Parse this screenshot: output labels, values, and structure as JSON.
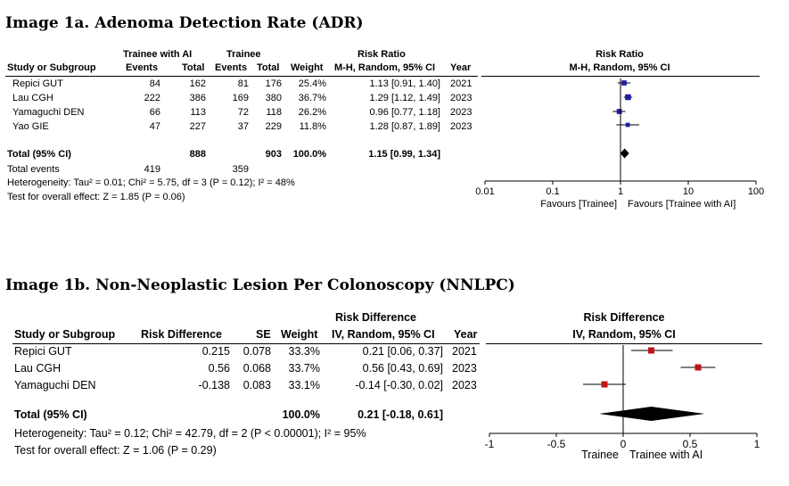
{
  "figure1": {
    "title": "Image 1a. Adenoma Detection Rate (ADR)",
    "headers": {
      "group1": "Trainee with AI",
      "group2": "Trainee",
      "rr": "Risk Ratio",
      "study": "Study or Subgroup",
      "events1": "Events",
      "total1": "Total",
      "events2": "Events",
      "total2": "Total",
      "weight": "Weight",
      "ci": "M-H, Random, 95% CI",
      "year": "Year",
      "plot_title": "Risk Ratio",
      "plot_sub": "M-H, Random, 95% CI"
    },
    "rows": [
      {
        "study": "Repici GUT",
        "events1": "84",
        "total1": "162",
        "events2": "81",
        "total2": "176",
        "weight": "25.4%",
        "ci": "1.13 [0.91, 1.40]",
        "year": "2021"
      },
      {
        "study": "Lau CGH",
        "events1": "222",
        "total1": "386",
        "events2": "169",
        "total2": "380",
        "weight": "36.7%",
        "ci": "1.29 [1.12, 1.49]",
        "year": "2023"
      },
      {
        "study": "Yamaguchi DEN",
        "events1": "66",
        "total1": "113",
        "events2": "72",
        "total2": "118",
        "weight": "26.2%",
        "ci": "0.96 [0.77, 1.18]",
        "year": "2023"
      },
      {
        "study": "Yao GIE",
        "events1": "47",
        "total1": "227",
        "events2": "37",
        "total2": "229",
        "weight": "11.8%",
        "ci": "1.28 [0.87, 1.89]",
        "year": "2023"
      }
    ],
    "total": {
      "label": "Total (95% CI)",
      "total1": "888",
      "total2": "903",
      "weight": "100.0%",
      "ci": "1.15 [0.99, 1.34]"
    },
    "total_events": {
      "label": "Total events",
      "events1": "419",
      "events2": "359"
    },
    "heterogeneity": "Heterogeneity: Tau² = 0.01; Chi² = 5.75, df = 3 (P = 0.12); I² = 48%",
    "overall": "Test for overall effect: Z = 1.85 (P = 0.06)",
    "favours_left": "Favours [Trainee]",
    "favours_right": "Favours [Trainee with AI]"
  },
  "figure2": {
    "title": "Image 1b. Non-Neoplastic Lesion Per Colonoscopy (NNLPC)",
    "headers": {
      "rd": "Risk Difference",
      "study": "Study or Subgroup",
      "diff": "Risk Difference",
      "se": "SE",
      "weight": "Weight",
      "ci": "IV, Random, 95% CI",
      "year": "Year",
      "plot_title": "Risk Difference",
      "plot_sub": "IV, Random, 95% CI"
    },
    "rows": [
      {
        "study": "Repici GUT",
        "diff": "0.215",
        "se": "0.078",
        "weight": "33.3%",
        "ci": "0.21 [0.06, 0.37]",
        "year": "2021"
      },
      {
        "study": "Lau CGH",
        "diff": "0.56",
        "se": "0.068",
        "weight": "33.7%",
        "ci": "0.56 [0.43, 0.69]",
        "year": "2023"
      },
      {
        "study": "Yamaguchi DEN",
        "diff": "-0.138",
        "se": "0.083",
        "weight": "33.1%",
        "ci": "-0.14 [-0.30, 0.02]",
        "year": "2023"
      }
    ],
    "total": {
      "label": "Total (95% CI)",
      "weight": "100.0%",
      "ci": "0.21 [-0.18, 0.61]"
    },
    "heterogeneity": "Heterogeneity: Tau² = 0.12; Chi² = 42.79, df = 2 (P < 0.00001); I² = 95%",
    "overall": "Test for overall effect: Z = 1.06 (P = 0.29)",
    "favours_left": "Trainee",
    "favours_right": "Trainee with AI"
  },
  "chart_data": [
    {
      "type": "forest",
      "title": "Risk Ratio",
      "scale": "log",
      "xlim": [
        0.01,
        100
      ],
      "ticks": [
        0.01,
        0.1,
        1,
        10,
        100
      ],
      "tick_labels": [
        "0.01",
        "0.1",
        "1",
        "10",
        "100"
      ],
      "null_value": 1,
      "marker_color": "#1f1fa8",
      "studies": [
        {
          "name": "Repici GUT",
          "estimate": 1.13,
          "lower": 0.91,
          "upper": 1.4,
          "weight": 25.4
        },
        {
          "name": "Lau CGH",
          "estimate": 1.29,
          "lower": 1.12,
          "upper": 1.49,
          "weight": 36.7
        },
        {
          "name": "Yamaguchi DEN",
          "estimate": 0.96,
          "lower": 0.77,
          "upper": 1.18,
          "weight": 26.2
        },
        {
          "name": "Yao GIE",
          "estimate": 1.28,
          "lower": 0.87,
          "upper": 1.89,
          "weight": 11.8
        }
      ],
      "pooled": {
        "estimate": 1.15,
        "lower": 0.99,
        "upper": 1.34
      }
    },
    {
      "type": "forest",
      "title": "Risk Difference",
      "scale": "linear",
      "xlim": [
        -1,
        1
      ],
      "ticks": [
        -1,
        -0.5,
        0,
        0.5,
        1
      ],
      "tick_labels": [
        "-1",
        "-0.5",
        "0",
        "0.5",
        "1"
      ],
      "null_value": 0,
      "marker_color": "#c0141b",
      "studies": [
        {
          "name": "Repici GUT",
          "estimate": 0.21,
          "lower": 0.06,
          "upper": 0.37,
          "weight": 33.3
        },
        {
          "name": "Lau CGH",
          "estimate": 0.56,
          "lower": 0.43,
          "upper": 0.69,
          "weight": 33.7
        },
        {
          "name": "Yamaguchi DEN",
          "estimate": -0.14,
          "lower": -0.3,
          "upper": 0.02,
          "weight": 33.1
        }
      ],
      "pooled": {
        "estimate": 0.21,
        "lower": -0.18,
        "upper": 0.61
      }
    }
  ]
}
